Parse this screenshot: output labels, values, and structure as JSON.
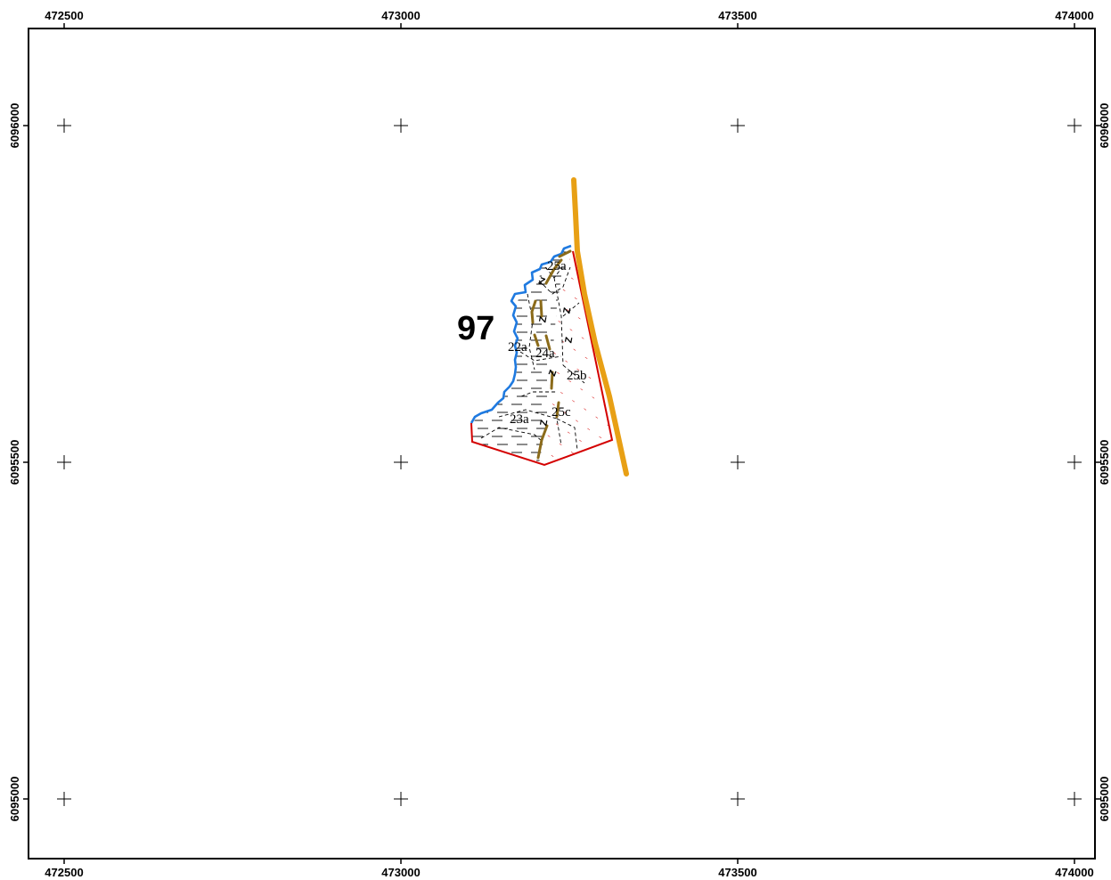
{
  "map": {
    "top_ticks": [
      "472500",
      "473000",
      "473500",
      "474000"
    ],
    "bottom_ticks": [
      "472500",
      "473000",
      "473500",
      "474000"
    ],
    "left_ticks": [
      "6096000",
      "6095500",
      "6095000"
    ],
    "right_ticks": [
      "6096000",
      "6095500",
      "6095000"
    ],
    "compartment_label": "97",
    "stand_labels": [
      "25a",
      "22a",
      "24a",
      "25b",
      "23a",
      "25c"
    ],
    "colors": {
      "frame": "#000000",
      "coast": "#1f7ae0",
      "boundary": "#d40000",
      "road": "#e8a015",
      "path": "#8b6b1a",
      "hatch_red": "#d40000",
      "hatch_black": "#000000"
    }
  }
}
